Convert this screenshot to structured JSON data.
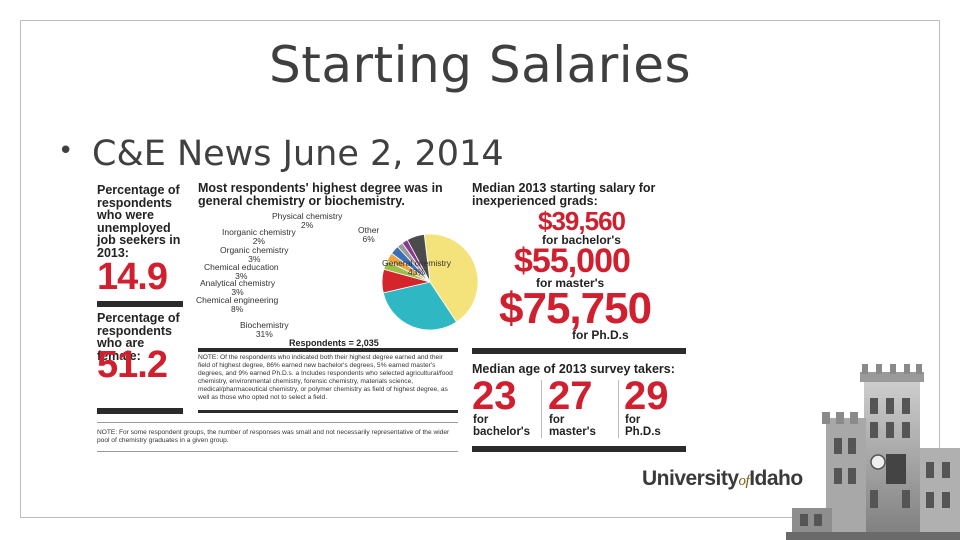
{
  "slide": {
    "title": "Starting Salaries",
    "bullet": "C&E News June 2, 2014"
  },
  "left_col": {
    "unemployed_label": "Percentage of respondents who were unemployed job seekers in 2013:",
    "unemployed_value": "14.9",
    "female_label": "Percentage of respondents who are female:",
    "female_value": "51.2"
  },
  "middle": {
    "title": "Most respondents' highest degree was in general chemistry or biochemistry.",
    "respondents": "Respondents = 2,035",
    "note": "NOTE: Of the respondents who indicated both their highest degree earned and their field of highest degree, 86% earned new bachelor's degrees, 5% earned master's degrees, and 9% earned Ph.D.s. a Includes respondents who selected agricultural/food chemistry, environmental chemistry, forensic chemistry, materials science, medical/pharmaceutical chemistry, or polymer chemistry as field of highest degree, as well as those who opted not to select a field.",
    "bottom_note": "NOTE: For some respondent groups, the number of responses was small and not necessarily representative of the wider pool of chemistry graduates in a given group."
  },
  "chart_data": {
    "type": "pie",
    "title": "",
    "slices": [
      {
        "label": "General chemistry",
        "value": 43,
        "value_label": "43%",
        "color": "#f3e37a"
      },
      {
        "label": "Biochemistry",
        "value": 31,
        "value_label": "31%",
        "color": "#2fb8c4"
      },
      {
        "label": "Chemical engineering",
        "value": 8,
        "value_label": "8%",
        "color": "#d4242c"
      },
      {
        "label": "Analytical chemistry",
        "value": 3,
        "value_label": "3%",
        "color": "#9bbf4a"
      },
      {
        "label": "Chemical education",
        "value": 3,
        "value_label": "3%",
        "color": "#f0a640"
      },
      {
        "label": "Organic chemistry",
        "value": 3,
        "value_label": "3%",
        "color": "#3c6fb4"
      },
      {
        "label": "Inorganic chemistry",
        "value": 2,
        "value_label": "2%",
        "color": "#9a9a9a"
      },
      {
        "label": "Physical chemistry",
        "value": 2,
        "value_label": "2%",
        "color": "#8a3b8f"
      },
      {
        "label": "Other",
        "value": 6,
        "value_label": "6%",
        "color": "#4b4b4b"
      }
    ]
  },
  "right": {
    "salary_heading": "Median 2013 starting salary for inexperienced grads:",
    "salaries": [
      {
        "amount": "$39,560",
        "for": "for bachelor's"
      },
      {
        "amount": "$55,000",
        "for": "for master's"
      },
      {
        "amount": "$75,750",
        "for": "for Ph.D.s"
      }
    ],
    "age_heading": "Median age of 2013 survey takers:",
    "ages": [
      {
        "age": "23",
        "for_1": "for",
        "for_2": "bachelor's"
      },
      {
        "age": "27",
        "for_1": "for",
        "for_2": "master's"
      },
      {
        "age": "29",
        "for_1": "for",
        "for_2": "Ph.D.s"
      }
    ]
  },
  "logo": {
    "part1": "University",
    "part2": "of",
    "part3": "Idaho"
  }
}
